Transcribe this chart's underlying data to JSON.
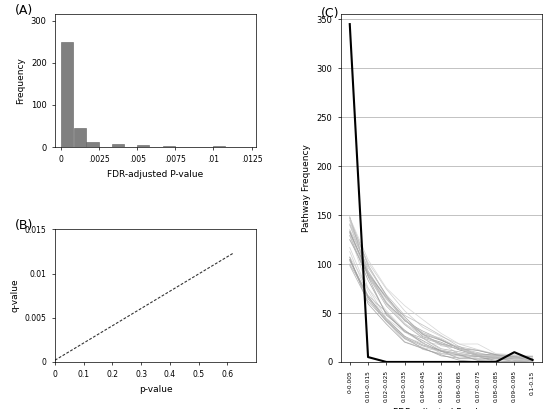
{
  "panel_A": {
    "label": "(A)",
    "bar_heights": [
      250,
      45,
      12,
      0,
      8,
      0,
      4,
      0,
      2,
      0,
      1,
      0,
      2,
      0,
      1
    ],
    "bar_color": "#808080",
    "bar_edge_color": "#606060",
    "xticks": [
      0,
      0.0025,
      0.005,
      0.0075,
      0.01,
      0.0125
    ],
    "xtick_labels": [
      "0",
      ".0025",
      ".005",
      ".0075",
      ".01",
      ".0125"
    ],
    "yticks": [
      0,
      100,
      200,
      300
    ],
    "ylim": [
      0,
      315
    ],
    "xlim": [
      -0.0004,
      0.0128
    ],
    "xlabel": "FDR-adjusted P-value",
    "ylabel": "Frequency",
    "bin_width": 0.000833
  },
  "panel_B": {
    "label": "(B)",
    "xlabel": "p-value",
    "ylabel": "q-value",
    "xlim": [
      0,
      0.7
    ],
    "ylim": [
      0,
      0.015
    ],
    "xticks": [
      0,
      0.1,
      0.2,
      0.3,
      0.4,
      0.5,
      0.6
    ],
    "yticks": [
      0,
      0.005,
      0.01,
      0.015
    ],
    "line_color": "#333333",
    "slope": 0.0195,
    "intercept": 0.0002
  },
  "panel_C": {
    "label": "(C)",
    "xlabel": "FDR-adjusted P-value",
    "ylabel": "Pathway Frequency",
    "ylim": [
      0,
      355
    ],
    "yticks": [
      0,
      50,
      100,
      150,
      200,
      250,
      300,
      350
    ],
    "xtick_labels": [
      "0-0.005",
      "0.01-0.015",
      "0.02-0.025",
      "0.03-0.035",
      "0.04-0.045",
      "0.05-0.055",
      "0.06-0.065",
      "0.07-0.075",
      "0.08-0.085",
      "0.09-0.095",
      "0.1-0.15"
    ],
    "observed": [
      345,
      5,
      0,
      0,
      0,
      0,
      0,
      0,
      0,
      10,
      2
    ],
    "sim_seed": 7,
    "n_curves": 25,
    "sim_peaks_low": 100,
    "sim_peaks_high": 150
  }
}
